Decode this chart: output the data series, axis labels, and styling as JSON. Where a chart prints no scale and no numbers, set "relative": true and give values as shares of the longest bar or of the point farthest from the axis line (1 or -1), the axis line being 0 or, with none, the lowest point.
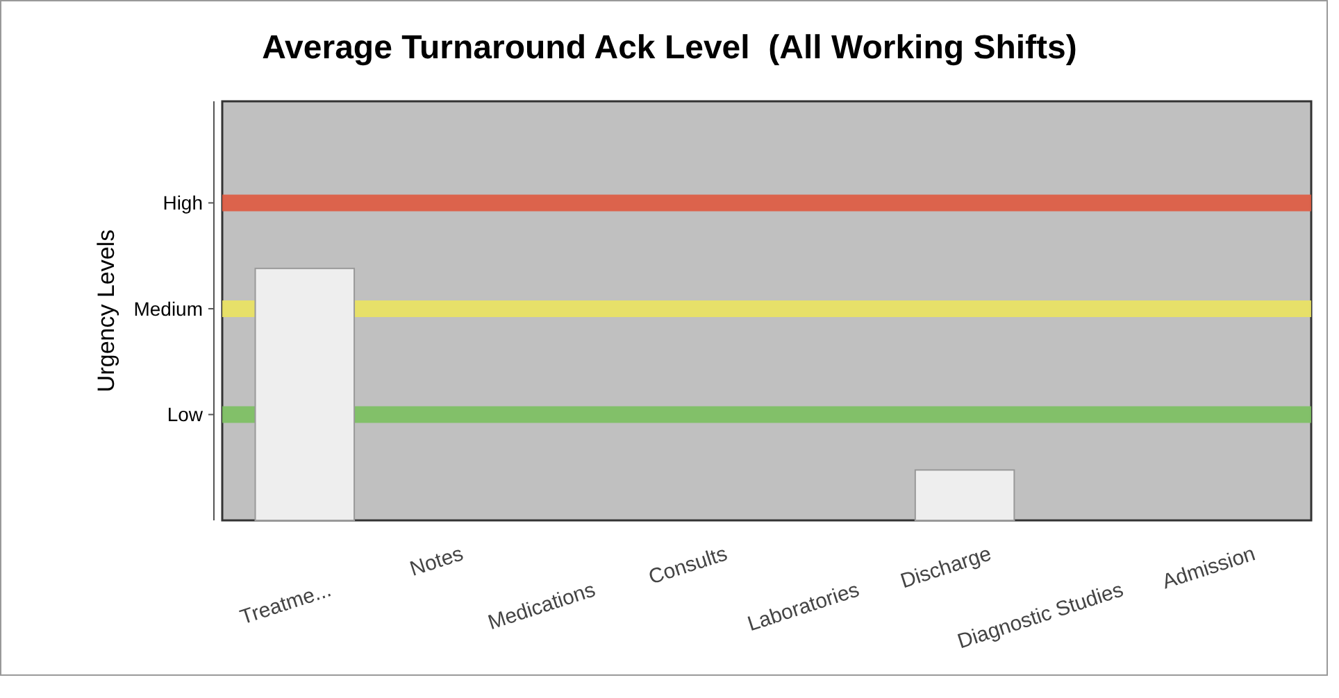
{
  "chart_data": {
    "type": "bar",
    "title": "Average Turnaround Ack Level  (All Working Shifts)",
    "ylabel": "Urgency Levels",
    "categories": [
      "Treatme...",
      "Notes",
      "Medications",
      "Consults",
      "Laboratories",
      "Discharge",
      "Diagnostic Studies",
      "Admission"
    ],
    "values": [
      1,
      0,
      0,
      0,
      0,
      0.2,
      0,
      0
    ],
    "color": "#eeeeee",
    "relative": true,
    "ref_lines": [
      {
        "axis": "y",
        "value": 1.26,
        "label": "High",
        "color": "#e05a40"
      },
      {
        "axis": "y",
        "value": 0.84,
        "label": "Medium",
        "color": "#ece460"
      },
      {
        "axis": "y",
        "value": 0.42,
        "label": "Low",
        "color": "#7cc060"
      }
    ]
  }
}
